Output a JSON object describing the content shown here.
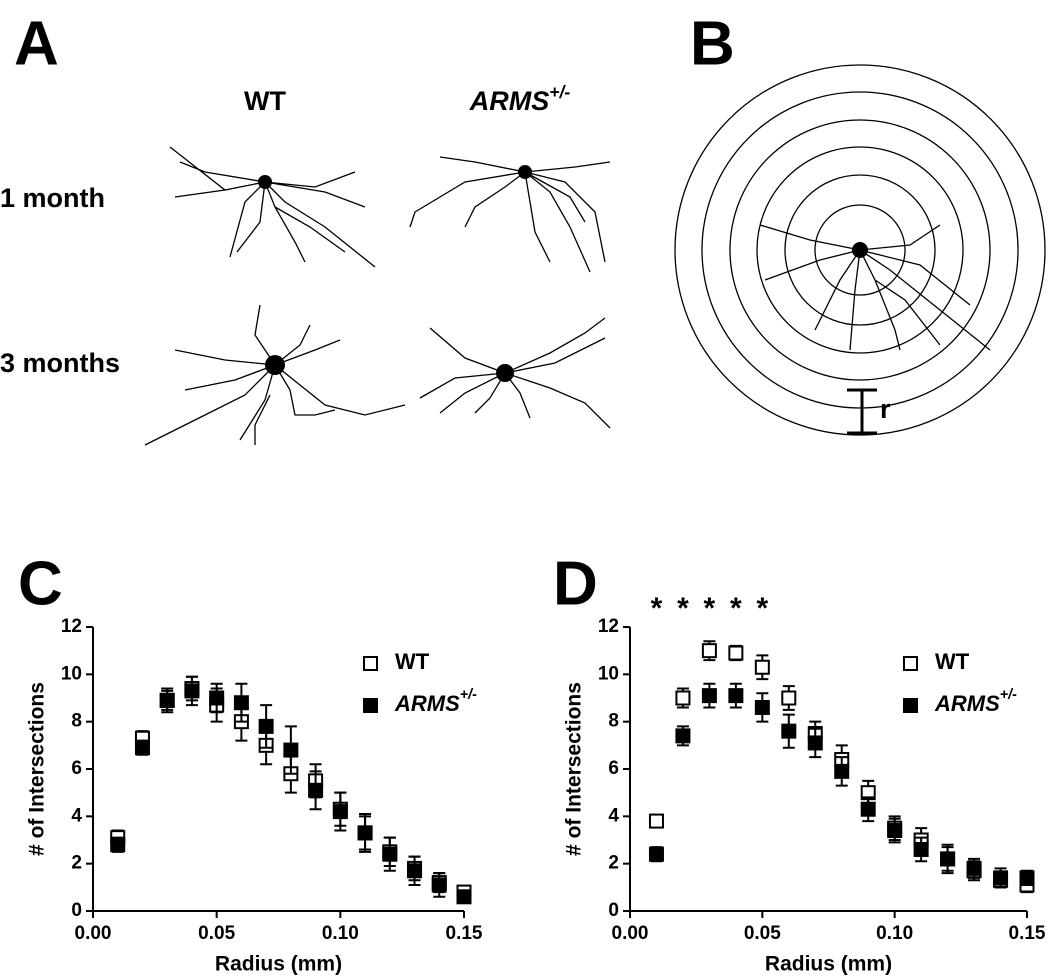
{
  "panel_a": {
    "letter": "A",
    "columns": [
      "WT",
      "ARMS+/-"
    ],
    "rows": [
      "1 month",
      "3 months"
    ]
  },
  "panel_b": {
    "letter": "B",
    "radius_label": "r"
  },
  "chart_data": [
    {
      "type": "scatter",
      "panel": "C",
      "xlabel": "Radius (mm)",
      "ylabel": "# of Intersections",
      "x": [
        0.01,
        0.02,
        0.03,
        0.04,
        0.05,
        0.06,
        0.07,
        0.08,
        0.09,
        0.1,
        0.11,
        0.12,
        0.13,
        0.14,
        0.15
      ],
      "xlim": [
        0,
        0.15
      ],
      "ylim": [
        0,
        12
      ],
      "xticks": [
        {
          "value": 0,
          "label": "0.00"
        },
        0.05,
        {
          "value": 0.1,
          "label": "0.10"
        },
        0.15
      ],
      "yticks": [
        0,
        2,
        4,
        6,
        8,
        10,
        12
      ],
      "series": [
        {
          "name": "WT",
          "color": "#000000",
          "marker_fill": "#ffffff",
          "values": [
            3.1,
            7.3,
            8.9,
            9.4,
            8.7,
            8.0,
            7.0,
            5.8,
            5.5,
            4.3,
            3.3,
            2.5,
            1.8,
            1.2,
            0.8
          ],
          "errors": [
            0.3,
            0.3,
            0.4,
            0.5,
            0.7,
            0.8,
            0.8,
            0.8,
            0.7,
            0.7,
            0.7,
            0.6,
            0.5,
            0.4,
            0.2
          ]
        },
        {
          "name": "ARMS+/-",
          "color": "#000000",
          "marker_fill": "#000000",
          "values": [
            2.8,
            6.9,
            8.9,
            9.3,
            9.0,
            8.8,
            7.8,
            6.8,
            5.1,
            4.2,
            3.3,
            2.4,
            1.7,
            1.1,
            0.6
          ],
          "errors": [
            0.3,
            0.3,
            0.5,
            0.6,
            0.6,
            0.8,
            0.9,
            1.0,
            0.8,
            0.8,
            0.8,
            0.7,
            0.6,
            0.5,
            0.2
          ]
        }
      ]
    },
    {
      "type": "scatter",
      "panel": "D",
      "xlabel": "Radius (mm)",
      "ylabel": "# of Intersections",
      "x": [
        0.01,
        0.02,
        0.03,
        0.04,
        0.05,
        0.06,
        0.07,
        0.08,
        0.09,
        0.1,
        0.11,
        0.12,
        0.13,
        0.14,
        0.15
      ],
      "xlim": [
        0,
        0.15
      ],
      "ylim": [
        0,
        12
      ],
      "xticks": [
        {
          "value": 0,
          "label": "0.00"
        },
        0.05,
        {
          "value": 0.1,
          "label": "0.10"
        },
        0.15
      ],
      "yticks": [
        0,
        2,
        4,
        6,
        8,
        10,
        12
      ],
      "annotations": [
        {
          "text": "*",
          "x": 0.01
        },
        {
          "text": "*",
          "x": 0.02
        },
        {
          "text": "*",
          "x": 0.03
        },
        {
          "text": "*",
          "x": 0.04
        },
        {
          "text": "*",
          "x": 0.05
        }
      ],
      "series": [
        {
          "name": "WT",
          "color": "#000000",
          "marker_fill": "#ffffff",
          "values": [
            3.8,
            9.0,
            11.0,
            10.9,
            10.3,
            9.0,
            7.5,
            6.4,
            5.0,
            3.5,
            3.0,
            2.2,
            1.7,
            1.3,
            1.1
          ],
          "errors": [
            0.2,
            0.4,
            0.4,
            0.3,
            0.5,
            0.5,
            0.5,
            0.6,
            0.5,
            0.5,
            0.5,
            0.5,
            0.4,
            0.3,
            0.3
          ]
        },
        {
          "name": "ARMS+/-",
          "color": "#000000",
          "marker_fill": "#000000",
          "values": [
            2.4,
            7.4,
            9.1,
            9.1,
            8.6,
            7.6,
            7.1,
            5.9,
            4.3,
            3.4,
            2.6,
            2.2,
            1.8,
            1.4,
            1.4
          ],
          "errors": [
            0.3,
            0.4,
            0.5,
            0.5,
            0.6,
            0.7,
            0.6,
            0.6,
            0.5,
            0.5,
            0.5,
            0.6,
            0.4,
            0.4,
            0.3
          ]
        }
      ]
    }
  ]
}
